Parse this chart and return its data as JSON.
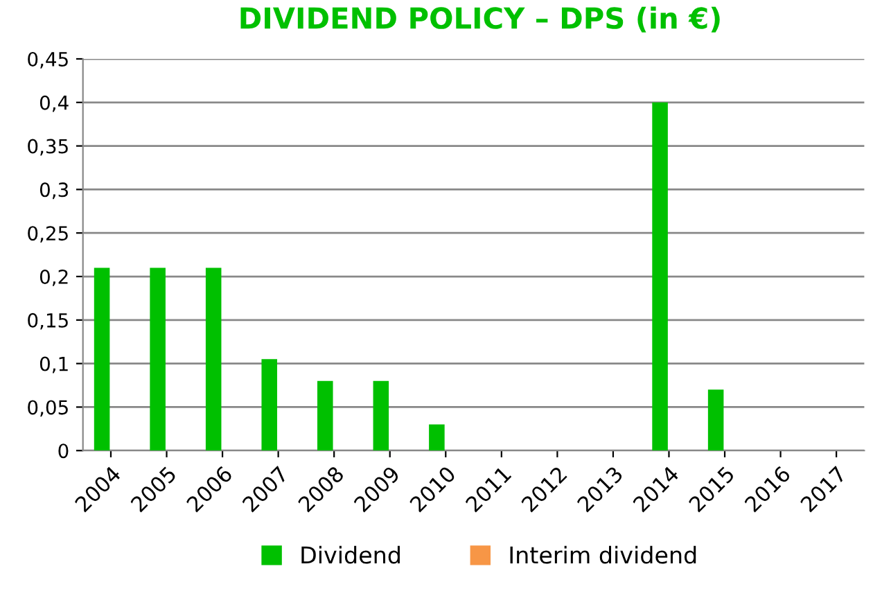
{
  "chart_data": {
    "type": "bar",
    "title": "DIVIDEND POLICY – DPS (in €)",
    "categories": [
      "2004",
      "2005",
      "2006",
      "2007",
      "2008",
      "2009",
      "2010",
      "2011",
      "2012",
      "2013",
      "2014",
      "2015",
      "2016",
      "2017"
    ],
    "series": [
      {
        "name": "Dividend",
        "color": "#00c000",
        "values": [
          0.21,
          0.21,
          0.21,
          0.105,
          0.08,
          0.08,
          0.03,
          0,
          0,
          0,
          0.4,
          0.07,
          0,
          0
        ]
      },
      {
        "name": "Interim dividend",
        "color": "#f79646",
        "values": [
          null,
          null,
          null,
          null,
          null,
          null,
          null,
          null,
          null,
          null,
          null,
          null,
          null,
          null
        ]
      }
    ],
    "ylim": [
      0,
      0.45
    ],
    "yticks": [
      {
        "value": 0,
        "label": "0"
      },
      {
        "value": 0.05,
        "label": "0,05"
      },
      {
        "value": 0.1,
        "label": "0,1"
      },
      {
        "value": 0.15,
        "label": "0,15"
      },
      {
        "value": 0.2,
        "label": "0,2"
      },
      {
        "value": 0.25,
        "label": "0,25"
      },
      {
        "value": 0.3,
        "label": "0,3"
      },
      {
        "value": 0.35,
        "label": "0,35"
      },
      {
        "value": 0.4,
        "label": "0,4"
      },
      {
        "value": 0.45,
        "label": "0,45"
      }
    ],
    "grid": "y",
    "legend": "bottom"
  }
}
